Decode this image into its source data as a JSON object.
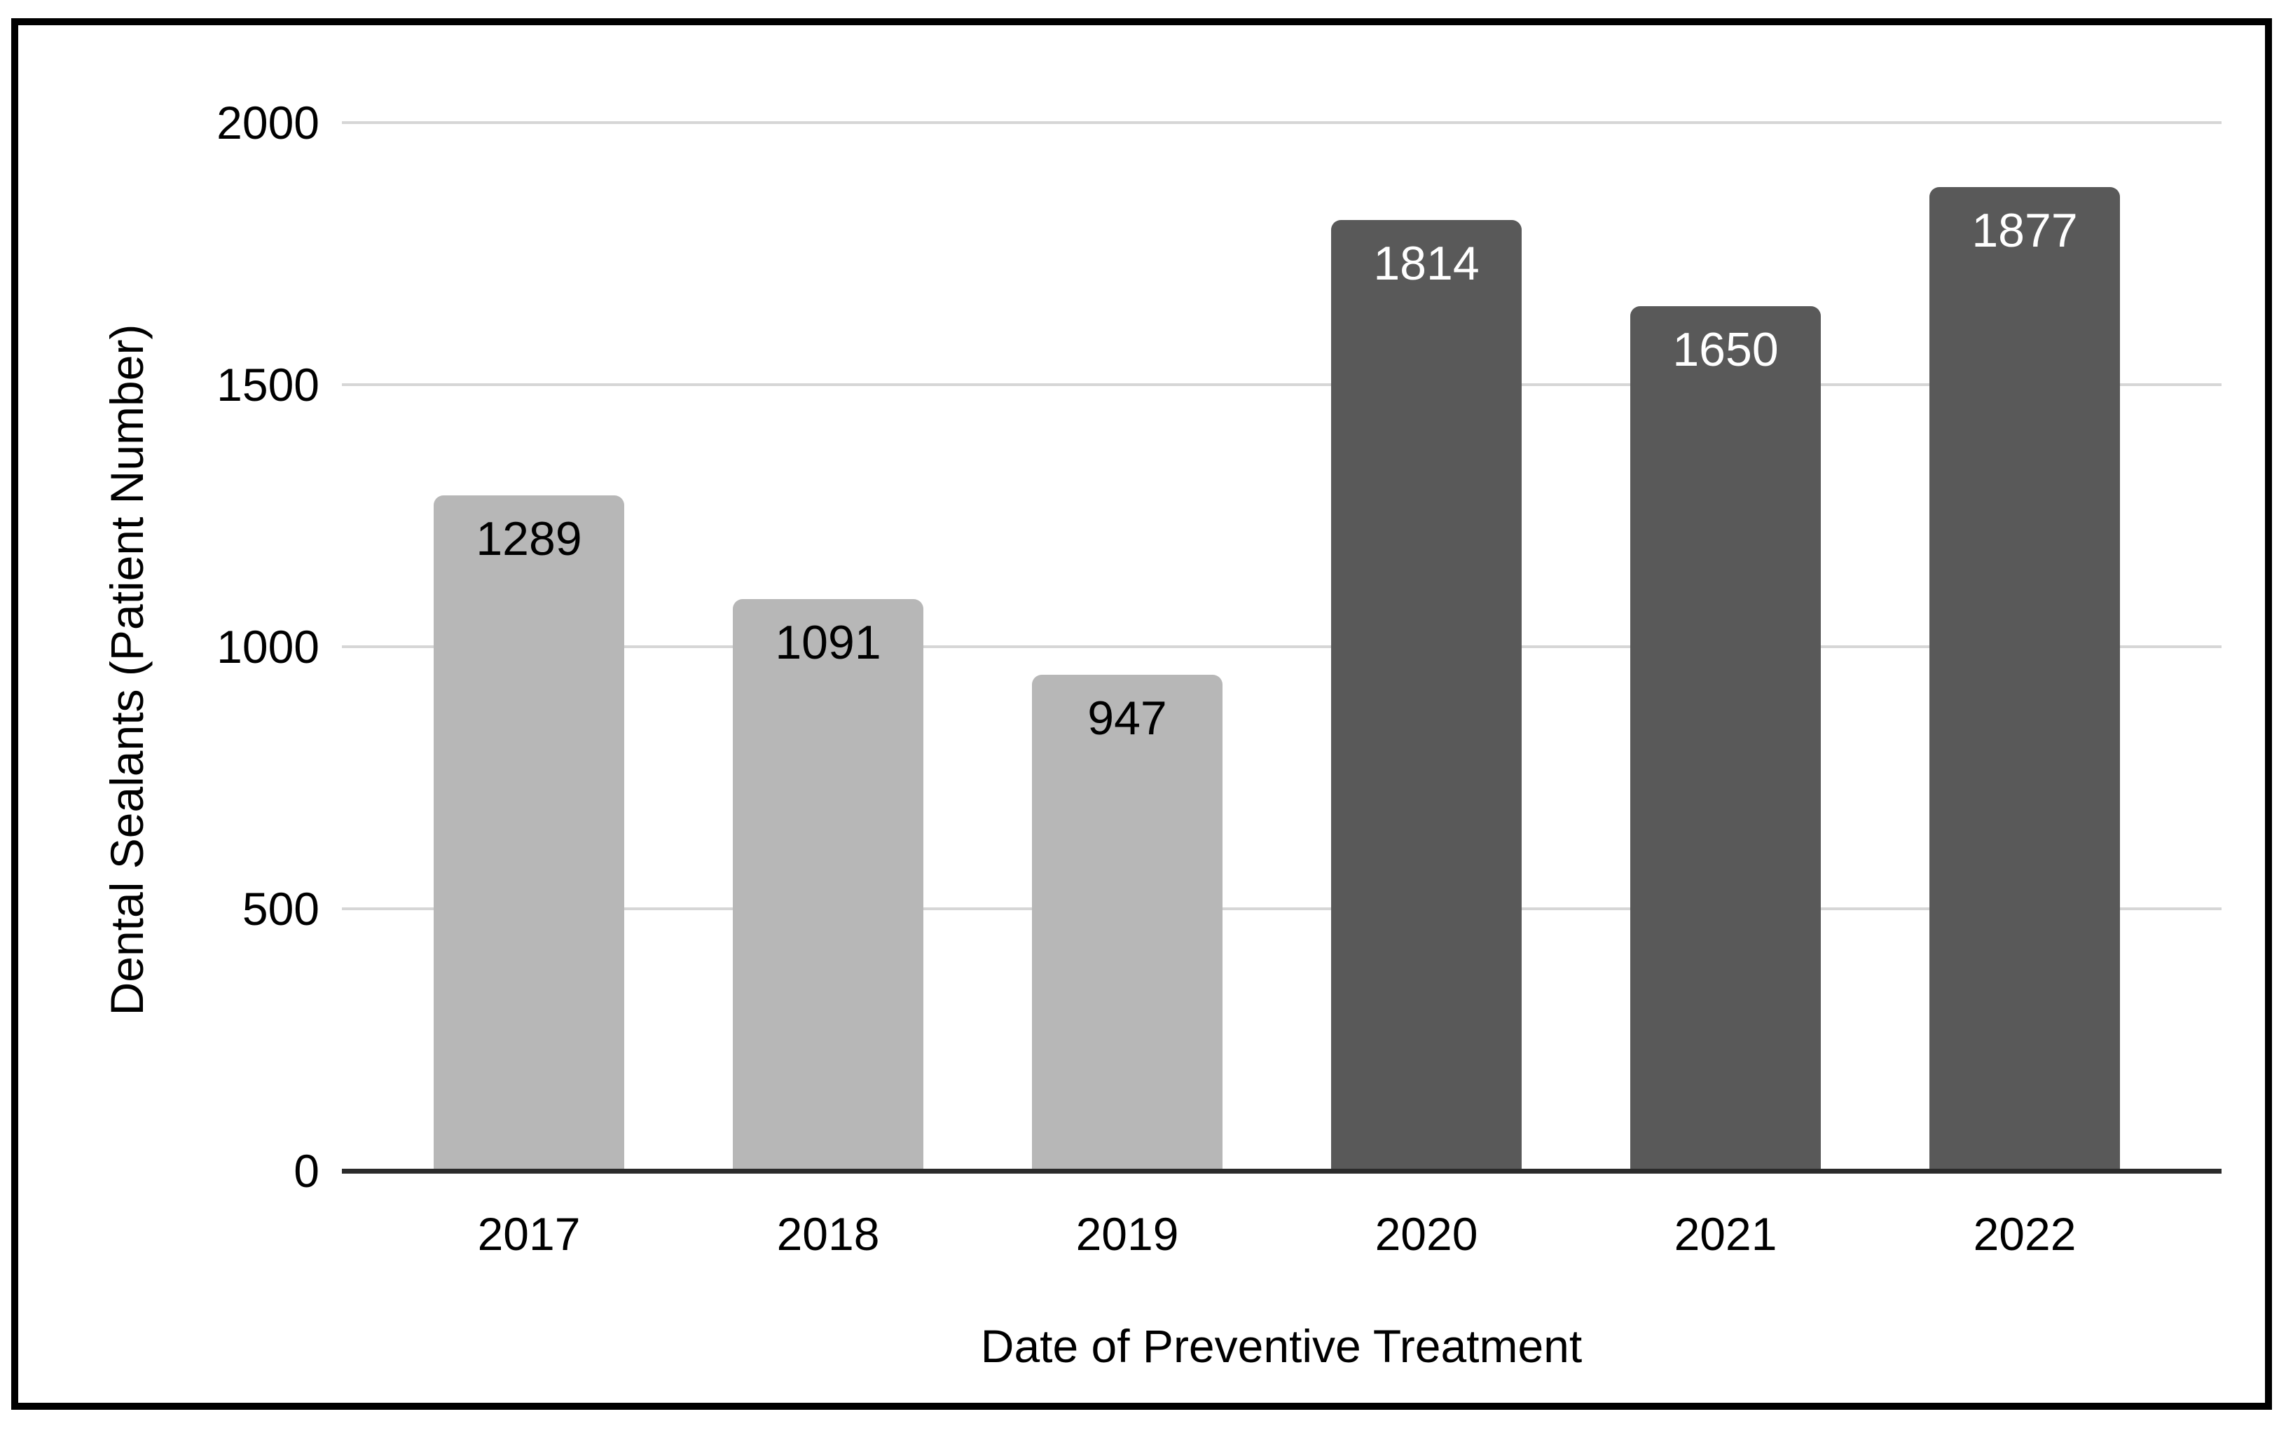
{
  "chart_data": {
    "type": "bar",
    "title": "",
    "categories": [
      "2017",
      "2018",
      "2019",
      "2020",
      "2021",
      "2022"
    ],
    "values": [
      1289,
      1091,
      947,
      1814,
      1650,
      1877
    ],
    "bar_colors": [
      "#b7b7b7",
      "#b7b7b7",
      "#b7b7b7",
      "#595959",
      "#595959",
      "#595959"
    ],
    "value_label_colors": [
      "#000000",
      "#000000",
      "#000000",
      "#ffffff",
      "#ffffff",
      "#ffffff"
    ],
    "xlabel": "Date of Preventive Treatment",
    "ylabel": "Dental Sealants (Patient Number)",
    "yticks": [
      0,
      500,
      1000,
      1500,
      2000
    ],
    "ylim": [
      0,
      2000
    ],
    "grid": true,
    "legend": "none",
    "gridline_color": "#d6d6d6",
    "axis_line_color": "#2b2b2b",
    "frame_border_color": "#000000",
    "background_color": "#ffffff"
  }
}
